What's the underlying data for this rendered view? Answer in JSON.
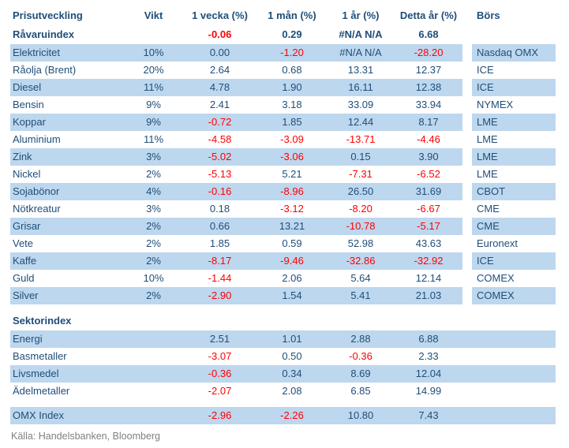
{
  "header": {
    "columns": [
      "Prisutveckling",
      "Vikt",
      "1 vecka (%)",
      "1 mån (%)",
      "1 år (%)",
      "Detta år (%)",
      "Börs"
    ]
  },
  "ravaruindex": {
    "name": "Råvaruindex",
    "vikt": "",
    "v1w": "-0.06",
    "v1m": "0.29",
    "v1y": "#N/A N/A",
    "vytd": "6.68",
    "bors": ""
  },
  "commodities": [
    {
      "name": "Elektricitet",
      "vikt": "10%",
      "v1w": "0.00",
      "v1m": "-1.20",
      "v1y": "#N/A N/A",
      "vytd": "-28.20",
      "bors": "Nasdaq OMX"
    },
    {
      "name": "Råolja (Brent)",
      "vikt": "20%",
      "v1w": "2.64",
      "v1m": "0.68",
      "v1y": "13.31",
      "vytd": "12.37",
      "bors": "ICE"
    },
    {
      "name": "Diesel",
      "vikt": "11%",
      "v1w": "4.78",
      "v1m": "1.90",
      "v1y": "16.11",
      "vytd": "12.38",
      "bors": "ICE"
    },
    {
      "name": "Bensin",
      "vikt": "9%",
      "v1w": "2.41",
      "v1m": "3.18",
      "v1y": "33.09",
      "vytd": "33.94",
      "bors": "NYMEX"
    },
    {
      "name": "Koppar",
      "vikt": "9%",
      "v1w": "-0.72",
      "v1m": "1.85",
      "v1y": "12.44",
      "vytd": "8.17",
      "bors": "LME"
    },
    {
      "name": "Aluminium",
      "vikt": "11%",
      "v1w": "-4.58",
      "v1m": "-3.09",
      "v1y": "-13.71",
      "vytd": "-4.46",
      "bors": "LME"
    },
    {
      "name": "Zink",
      "vikt": "3%",
      "v1w": "-5.02",
      "v1m": "-3.06",
      "v1y": "0.15",
      "vytd": "3.90",
      "bors": "LME"
    },
    {
      "name": "Nickel",
      "vikt": "2%",
      "v1w": "-5.13",
      "v1m": "5.21",
      "v1y": "-7.31",
      "vytd": "-6.52",
      "bors": "LME"
    },
    {
      "name": "Sojabönor",
      "vikt": "4%",
      "v1w": "-0.16",
      "v1m": "-8.96",
      "v1y": "26.50",
      "vytd": "31.69",
      "bors": "CBOT"
    },
    {
      "name": "Nötkreatur",
      "vikt": "3%",
      "v1w": "0.18",
      "v1m": "-3.12",
      "v1y": "-8.20",
      "vytd": "-6.67",
      "bors": "CME"
    },
    {
      "name": "Grisar",
      "vikt": "2%",
      "v1w": "0.66",
      "v1m": "13.21",
      "v1y": "-10.78",
      "vytd": "-5.17",
      "bors": "CME"
    },
    {
      "name": "Vete",
      "vikt": "2%",
      "v1w": "1.85",
      "v1m": "0.59",
      "v1y": "52.98",
      "vytd": "43.63",
      "bors": "Euronext"
    },
    {
      "name": "Kaffe",
      "vikt": "2%",
      "v1w": "-8.17",
      "v1m": "-9.46",
      "v1y": "-32.86",
      "vytd": "-32.92",
      "bors": "ICE"
    },
    {
      "name": "Guld",
      "vikt": "10%",
      "v1w": "-1.44",
      "v1m": "2.06",
      "v1y": "5.64",
      "vytd": "12.14",
      "bors": "COMEX"
    },
    {
      "name": "Silver",
      "vikt": "2%",
      "v1w": "-2.90",
      "v1m": "1.54",
      "v1y": "5.41",
      "vytd": "21.03",
      "bors": "COMEX"
    }
  ],
  "sektor": {
    "label": "Sektorindex",
    "rows": [
      {
        "name": "Energi",
        "vikt": "",
        "v1w": "2.51",
        "v1m": "1.01",
        "v1y": "2.88",
        "vytd": "6.88",
        "bors": ""
      },
      {
        "name": "Basmetaller",
        "vikt": "",
        "v1w": "-3.07",
        "v1m": "0.50",
        "v1y": "-0.36",
        "vytd": "2.33",
        "bors": ""
      },
      {
        "name": "Livsmedel",
        "vikt": "",
        "v1w": "-0.36",
        "v1m": "0.34",
        "v1y": "8.69",
        "vytd": "12.04",
        "bors": ""
      },
      {
        "name": "Ädelmetaller",
        "vikt": "",
        "v1w": "-2.07",
        "v1m": "2.08",
        "v1y": "6.85",
        "vytd": "14.99",
        "bors": ""
      }
    ]
  },
  "omx": {
    "name": "OMX Index",
    "vikt": "",
    "v1w": "-2.96",
    "v1m": "-2.26",
    "v1y": "10.80",
    "vytd": "7.43",
    "bors": ""
  },
  "footer": {
    "source": "Källa: Handelsbanken, Bloomberg"
  },
  "colors": {
    "row_highlight": "#BDD7EE",
    "text_navy": "#1F4E79",
    "text_negative": "#FF0000",
    "source_gray": "#808080",
    "background": "#FFFFFF"
  }
}
